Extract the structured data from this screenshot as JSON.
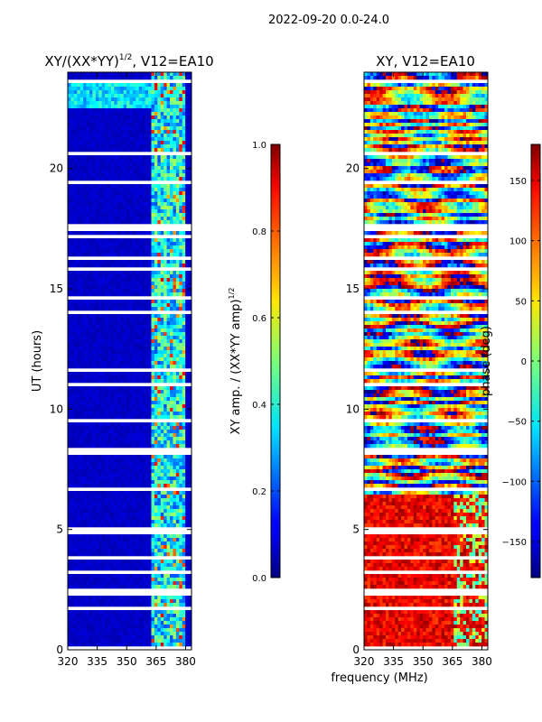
{
  "suptitle": "2022-09-20 0.0-24.0",
  "shared_xlabel": "frequency (MHz)",
  "chart_data": [
    {
      "type": "heatmap",
      "title_main": "XY/(XX*YY)",
      "title_sup": "1/2",
      "title_tail": ", V12=EA10",
      "ylabel": "UT (hours)",
      "xlim": [
        320,
        383
      ],
      "ylim": [
        0,
        24
      ],
      "xticks": [
        320,
        335,
        350,
        365,
        380
      ],
      "yticks": [
        0,
        5,
        10,
        15,
        20
      ],
      "colormap": "jet",
      "colorbar": {
        "label_main": "XY amp. / (XX*YY amp)",
        "label_sup": "1/2",
        "range": [
          0.0,
          1.0
        ],
        "ticks": [
          0.0,
          0.2,
          0.4,
          0.6,
          0.8,
          1.0
        ],
        "tick_labels": [
          "0.0",
          "0.2",
          "0.4",
          "0.6",
          "0.8",
          "1.0"
        ]
      },
      "description_values": {
        "background_level": 0.05,
        "high_band_mhz": [
          362,
          380
        ],
        "high_band_level_range": [
          0.2,
          0.55
        ],
        "bright_rows_ut": [
          22.5,
          23.5
        ]
      }
    },
    {
      "type": "heatmap",
      "title_main": "XY",
      "title_tail": ", V12=EA10",
      "xlim": [
        320,
        383
      ],
      "ylim": [
        0,
        24
      ],
      "xticks": [
        320,
        335,
        350,
        365,
        380
      ],
      "yticks": [
        0,
        5,
        10,
        15,
        20
      ],
      "colormap": "jet",
      "colorbar": {
        "label": "phase (deg)",
        "range": [
          -180,
          180
        ],
        "ticks": [
          -150,
          -100,
          -50,
          0,
          50,
          100,
          150
        ],
        "tick_labels": [
          "−150",
          "−100",
          "−50",
          "0",
          "50",
          "100",
          "150"
        ]
      },
      "description_values": {
        "low_ut_phase_deg": 140,
        "high_ut_phase_range_deg": [
          -180,
          180
        ]
      }
    }
  ]
}
